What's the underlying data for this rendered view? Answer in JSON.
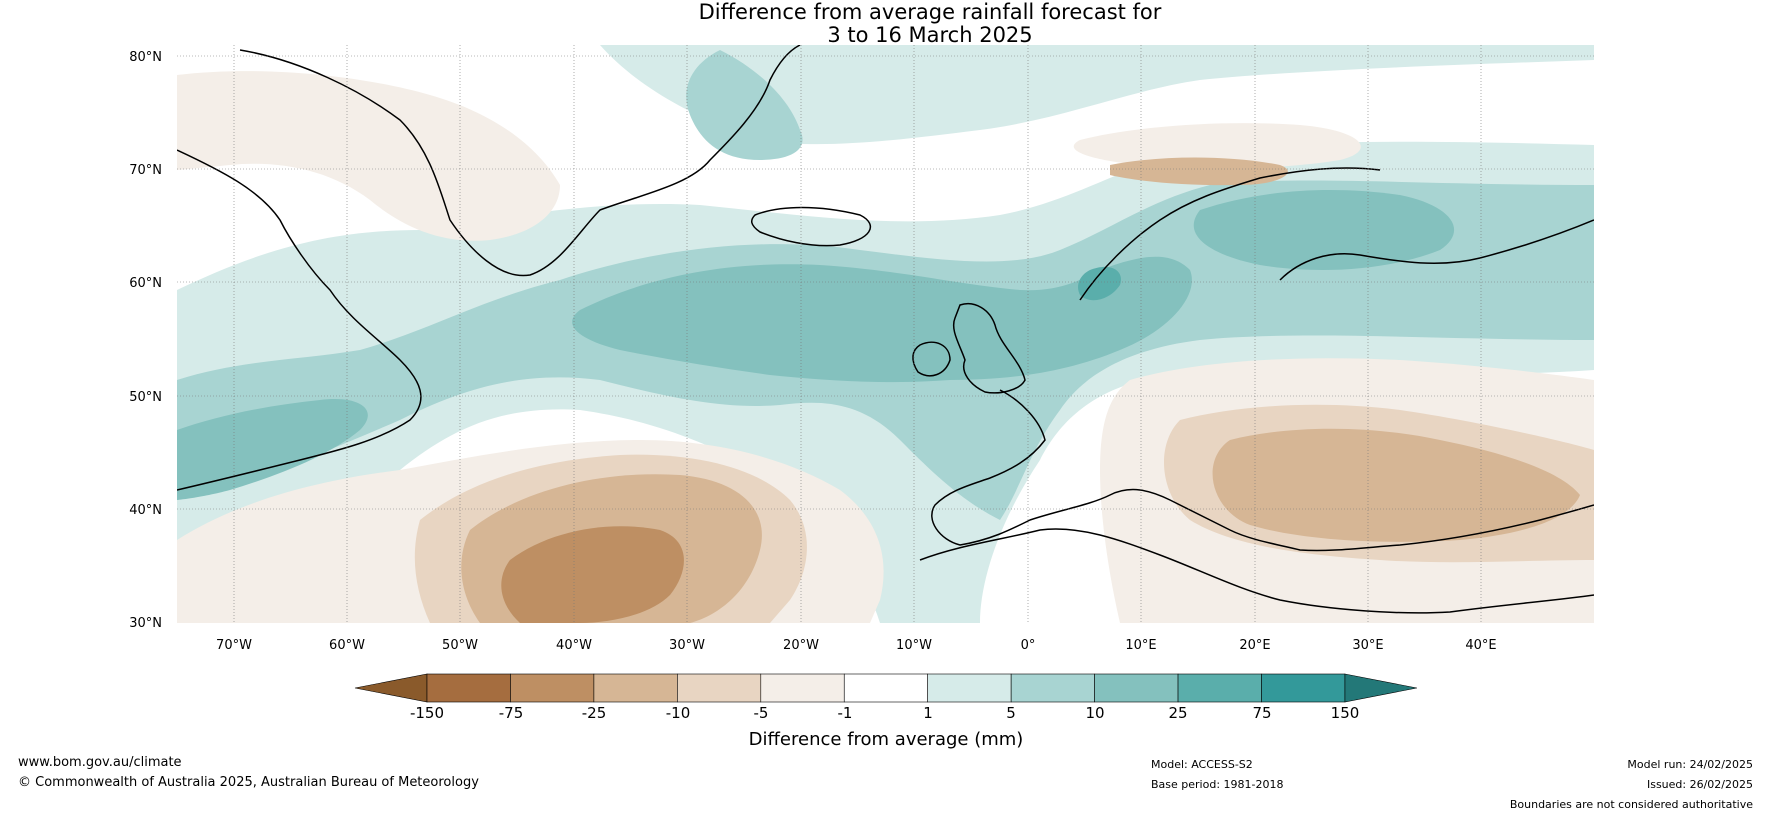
{
  "title": {
    "line1": "Difference from average rainfall forecast for",
    "line2": "3 to 16 March 2025"
  },
  "map": {
    "lat_ticks": [
      "80°N",
      "70°N",
      "60°N",
      "50°N",
      "40°N",
      "30°N"
    ],
    "lon_ticks": [
      "70°W",
      "60°W",
      "50°W",
      "40°W",
      "30°W",
      "20°W",
      "10°W",
      "0°",
      "10°E",
      "20°E",
      "30°E",
      "40°E"
    ]
  },
  "colorbar": {
    "ticks": [
      "-150",
      "-75",
      "-25",
      "-10",
      "-5",
      "-1",
      "1",
      "5",
      "10",
      "25",
      "75",
      "150"
    ],
    "colors": [
      "#8a5a2b",
      "#a56d3f",
      "#be8f63",
      "#d6b695",
      "#e8d5c2",
      "#f4eee8",
      "#ffffff",
      "#d6ebe9",
      "#a8d4d2",
      "#84c1be",
      "#5aaeab",
      "#33999a",
      "#237878"
    ],
    "label": "Difference from average (mm)"
  },
  "footer": {
    "website": "www.bom.gov.au/climate",
    "copyright": "© Commonwealth of Australia 2025, Australian Bureau of Meteorology",
    "model": "Model: ACCESS-S2",
    "base_period": "Base period: 1981-2018",
    "model_run": "Model run: 24/02/2025",
    "issued": "Issued: 26/02/2025",
    "disclaimer": "Boundaries are not considered authoritative"
  }
}
